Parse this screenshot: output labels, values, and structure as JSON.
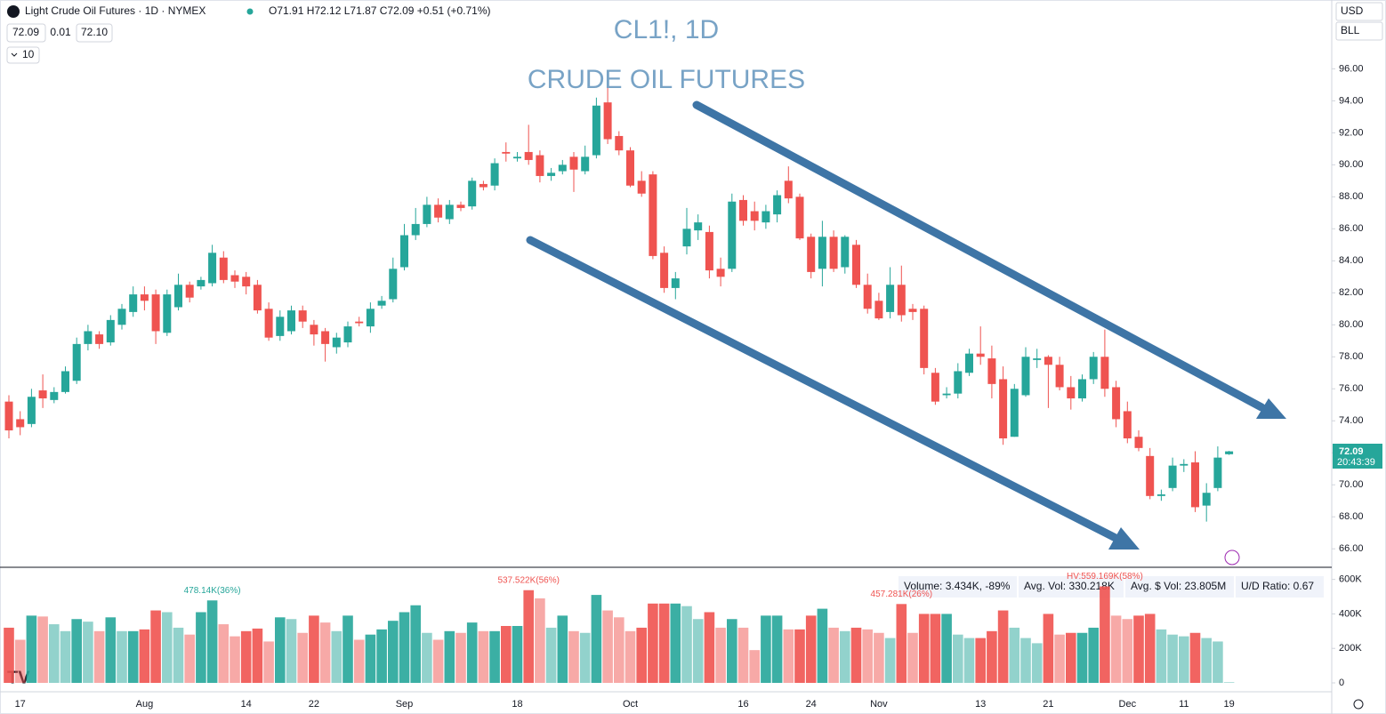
{
  "header": {
    "symbol": "Light Crude Oil Futures · 1D · NYMEX",
    "ohlc": "O71.91 H72.12 L71.87 C72.09 +0.51 (+0.71%)",
    "bid": "72.09",
    "spread": "0.01",
    "ask": "72.10",
    "interval_menu": "10",
    "currency": "USD",
    "unit": "BLL"
  },
  "annotations": {
    "title": "CL1!, 1D",
    "subtitle": "CRUDE OIL FUTURES"
  },
  "price_tag": {
    "price": "72.09",
    "countdown": "20:43:39"
  },
  "volume_legend": {
    "volume": "Volume: 3.434K, -89%",
    "avg_vol": "Avg. Vol: 330.218K",
    "avg_dollar_vol": "Avg. $ Vol: 23.805M",
    "ud_ratio": "U/D Ratio: 0.67"
  },
  "chart_data": {
    "type": "candlestick",
    "categories": [
      null,
      "17",
      null,
      null,
      null,
      null,
      null,
      null,
      null,
      null,
      null,
      null,
      "Aug",
      null,
      null,
      null,
      null,
      null,
      null,
      null,
      null,
      "14",
      null,
      null,
      null,
      null,
      null,
      "22",
      null,
      null,
      null,
      null,
      null,
      null,
      null,
      "Sep",
      null,
      null,
      null,
      null,
      null,
      null,
      null,
      null,
      null,
      "18",
      null,
      null,
      null,
      null,
      null,
      null,
      null,
      null,
      null,
      "Oct",
      null,
      null,
      null,
      null,
      null,
      null,
      null,
      null,
      null,
      "16",
      null,
      null,
      null,
      null,
      null,
      "24",
      null,
      null,
      null,
      null,
      null,
      "Nov",
      null,
      null,
      null,
      null,
      null,
      null,
      null,
      null,
      "13",
      null,
      null,
      null,
      null,
      null,
      "21",
      null,
      null,
      null,
      null,
      null,
      null,
      "Dec",
      null,
      null,
      null,
      null,
      "11",
      null,
      null,
      null,
      "19"
    ],
    "open": [
      75.2,
      74.1,
      73.8,
      75.9,
      75.3,
      75.8,
      76.5,
      78.8,
      79.4,
      78.9,
      80.0,
      80.8,
      81.9,
      81.9,
      79.5,
      81.1,
      82.5,
      82.4,
      82.6,
      84.2,
      83.1,
      83.0,
      82.5,
      81.0,
      79.3,
      79.6,
      80.9,
      80.0,
      79.6,
      78.6,
      78.9,
      80.2,
      79.9,
      81.2,
      81.6,
      83.6,
      85.6,
      86.3,
      87.5,
      86.6,
      87.5,
      87.4,
      88.8,
      88.7,
      90.8,
      90.4,
      90.8,
      90.6,
      89.3,
      89.6,
      90.5,
      89.6,
      90.6,
      93.9,
      91.8,
      90.9,
      89.0,
      89.4,
      84.5,
      82.3,
      84.9,
      85.9,
      85.8,
      83.5,
      83.5,
      87.8,
      87.1,
      86.4,
      86.9,
      89.0,
      88.0,
      85.5,
      83.5,
      85.5,
      83.6,
      85.0,
      82.5,
      81.5,
      80.8,
      82.5,
      81.0,
      81.0,
      77.0,
      75.6,
      75.7,
      77.0,
      78.2,
      77.9,
      76.6,
      73.0,
      75.6,
      77.8,
      78.0,
      77.5,
      76.1,
      75.4,
      76.6,
      78.0,
      76.1,
      74.6,
      73.0,
      71.8,
      69.3,
      69.8,
      71.2,
      71.4,
      68.7,
      69.8,
      71.91
    ],
    "high": [
      75.6,
      74.6,
      76.0,
      76.9,
      76.1,
      77.4,
      79.2,
      80.0,
      79.6,
      80.6,
      81.3,
      82.4,
      82.4,
      82.2,
      82.2,
      83.2,
      82.7,
      83.0,
      85.0,
      84.6,
      83.4,
      83.3,
      82.8,
      81.4,
      80.9,
      81.2,
      81.2,
      80.3,
      79.8,
      79.5,
      80.2,
      80.5,
      81.4,
      81.8,
      84.2,
      86.3,
      87.3,
      88.0,
      87.9,
      87.8,
      87.7,
      89.2,
      89.0,
      90.4,
      91.4,
      90.8,
      92.5,
      90.9,
      89.8,
      90.3,
      90.8,
      91.2,
      94.2,
      94.8,
      92.1,
      91.1,
      89.6,
      89.6,
      84.9,
      83.3,
      87.3,
      86.9,
      86.2,
      84.2,
      88.2,
      88.1,
      87.7,
      87.5,
      88.4,
      89.9,
      88.2,
      85.7,
      86.5,
      85.9,
      85.6,
      85.3,
      83.2,
      82.0,
      83.6,
      83.7,
      81.3,
      81.2,
      77.3,
      76.1,
      77.6,
      78.5,
      79.9,
      78.7,
      77.4,
      76.3,
      78.6,
      78.5,
      78.1,
      78.0,
      76.8,
      76.9,
      78.3,
      79.7,
      76.5,
      75.2,
      73.4,
      72.3,
      69.7,
      71.7,
      71.6,
      72.1,
      70.1,
      72.4,
      72.12
    ],
    "low": [
      72.9,
      73.1,
      73.6,
      74.8,
      75.1,
      75.7,
      76.3,
      78.4,
      78.5,
      78.7,
      79.7,
      80.5,
      80.9,
      78.8,
      79.3,
      80.9,
      81.4,
      82.2,
      82.4,
      82.6,
      82.3,
      81.9,
      80.7,
      79.0,
      79.0,
      79.4,
      79.8,
      78.7,
      77.7,
      78.2,
      78.6,
      79.9,
      79.5,
      81.0,
      81.4,
      83.4,
      85.3,
      86.1,
      86.4,
      86.3,
      87.1,
      87.2,
      88.4,
      88.4,
      90.2,
      90.2,
      90.0,
      88.9,
      89.0,
      89.4,
      88.3,
      89.4,
      90.4,
      91.3,
      90.6,
      88.6,
      88.0,
      84.1,
      82.0,
      81.6,
      84.4,
      85.3,
      82.9,
      82.4,
      83.3,
      86.2,
      85.9,
      86.0,
      86.4,
      87.6,
      85.3,
      82.9,
      82.4,
      83.3,
      83.2,
      82.3,
      80.7,
      80.3,
      80.4,
      80.2,
      80.3,
      76.9,
      75.0,
      75.4,
      75.4,
      76.8,
      77.5,
      75.4,
      72.5,
      73.0,
      75.5,
      77.3,
      74.8,
      75.9,
      74.7,
      75.2,
      76.3,
      75.5,
      73.6,
      72.6,
      72.1,
      69.1,
      69.0,
      69.6,
      70.8,
      68.3,
      67.7,
      69.6,
      71.87
    ],
    "close": [
      73.4,
      73.6,
      75.5,
      75.4,
      75.8,
      77.1,
      78.8,
      79.6,
      78.8,
      80.3,
      81.0,
      81.9,
      81.5,
      79.6,
      81.9,
      82.5,
      81.7,
      82.8,
      84.5,
      82.8,
      82.7,
      82.4,
      80.9,
      79.2,
      80.5,
      80.9,
      80.2,
      79.4,
      78.8,
      79.2,
      79.9,
      80.1,
      81.0,
      81.5,
      83.5,
      85.6,
      86.3,
      87.5,
      86.7,
      87.5,
      87.3,
      89.0,
      88.6,
      90.1,
      90.7,
      90.5,
      90.3,
      89.3,
      89.5,
      90.0,
      89.7,
      90.5,
      93.7,
      91.6,
      90.9,
      88.7,
      88.2,
      84.3,
      82.3,
      82.9,
      86.0,
      86.4,
      83.4,
      83.0,
      87.7,
      86.5,
      86.5,
      87.1,
      88.1,
      87.9,
      85.4,
      83.3,
      85.5,
      83.5,
      85.5,
      82.5,
      81.0,
      80.4,
      82.5,
      80.6,
      80.8,
      77.3,
      75.2,
      75.7,
      77.1,
      78.2,
      78.0,
      76.3,
      72.9,
      76.0,
      78.0,
      77.9,
      77.5,
      76.1,
      75.4,
      76.6,
      78.0,
      76.0,
      74.1,
      72.9,
      72.3,
      69.3,
      69.4,
      71.2,
      71.3,
      68.6,
      69.5,
      71.7,
      72.09
    ],
    "volume": [
      320000,
      250000,
      390000,
      385000,
      340000,
      300000,
      370000,
      355000,
      300000,
      380000,
      300000,
      300000,
      310000,
      420000,
      410000,
      320000,
      280000,
      410000,
      478140,
      340000,
      270000,
      300000,
      315000,
      240000,
      380000,
      370000,
      290000,
      390000,
      350000,
      300000,
      390000,
      250000,
      280000,
      310000,
      360000,
      410000,
      450000,
      290000,
      250000,
      300000,
      290000,
      350000,
      300000,
      300000,
      330000,
      330000,
      537522,
      490000,
      320000,
      390000,
      300000,
      290000,
      510000,
      420000,
      380000,
      300000,
      320000,
      460000,
      460000,
      460000,
      445000,
      370000,
      410000,
      320000,
      370000,
      320000,
      190000,
      390000,
      390000,
      310000,
      310000,
      390000,
      430000,
      320000,
      300000,
      320000,
      310000,
      290000,
      260000,
      457281,
      290000,
      400000,
      400000,
      400000,
      280000,
      260000,
      260000,
      300000,
      420000,
      320000,
      260000,
      230000,
      400000,
      280000,
      290000,
      290000,
      320000,
      559169,
      390000,
      370000,
      390000,
      400000,
      310000,
      280000,
      270000,
      290000,
      260000,
      240000,
      3434
    ],
    "value_labels": [
      null,
      null,
      null,
      null,
      null,
      null,
      null,
      null,
      null,
      null,
      null,
      null,
      null,
      null,
      null,
      null,
      null,
      null,
      "478.14K(36%)",
      null,
      null,
      null,
      null,
      null,
      null,
      null,
      null,
      null,
      null,
      null,
      null,
      null,
      null,
      null,
      null,
      null,
      null,
      null,
      null,
      null,
      null,
      null,
      null,
      null,
      null,
      null,
      "537.522K(56%)",
      null,
      null,
      null,
      null,
      null,
      null,
      null,
      null,
      null,
      null,
      null,
      null,
      null,
      null,
      null,
      null,
      null,
      null,
      null,
      null,
      null,
      null,
      null,
      null,
      null,
      null,
      null,
      null,
      null,
      null,
      null,
      null,
      "457.281K(26%)",
      null,
      null,
      null,
      null,
      null,
      null,
      null,
      null,
      null,
      null,
      null,
      null,
      null,
      null,
      null,
      null,
      null,
      "HV:559.169K(58%)",
      null,
      null,
      null,
      null,
      null,
      null,
      null,
      null,
      null,
      null,
      null
    ],
    "up_color": "#26a69a",
    "down_color": "#ef5350",
    "ylim": [
      64.9,
      100.3
    ],
    "yticks": [
      {
        "value": 66,
        "label": "66.00"
      },
      {
        "value": 68,
        "label": "68.00"
      },
      {
        "value": 70,
        "label": "70.00"
      },
      {
        "value": 72,
        "label": "72.00"
      },
      {
        "value": 74,
        "label": "74.00"
      },
      {
        "value": 76,
        "label": "76.00"
      },
      {
        "value": 78,
        "label": "78.00"
      },
      {
        "value": 80,
        "label": "80.00"
      },
      {
        "value": 82,
        "label": "82.00"
      },
      {
        "value": 84,
        "label": "84.00"
      },
      {
        "value": 86,
        "label": "86.00"
      },
      {
        "value": 88,
        "label": "88.00"
      },
      {
        "value": 90,
        "label": "90.00"
      },
      {
        "value": 92,
        "label": "92.00"
      },
      {
        "value": 94,
        "label": "94.00"
      },
      {
        "value": 96,
        "label": "96.00"
      }
    ],
    "vlim": [
      0,
      660000
    ],
    "vticks": [
      0,
      {
        "value": 200000,
        "label": "200K"
      },
      {
        "value": 400000,
        "label": "400K"
      },
      {
        "value": 600000,
        "label": "600K"
      }
    ],
    "grid": false
  }
}
